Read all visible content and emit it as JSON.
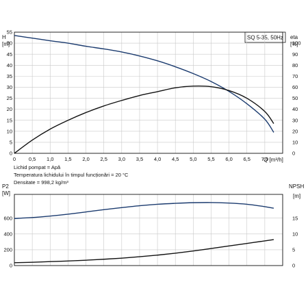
{
  "chart_data": [
    {
      "type": "line",
      "title": "",
      "badge": "SQ 5-35, 50Hz",
      "xlabel": "Q [m³/h]",
      "ylabel_left": "H",
      "ylabel_left_unit": "[m]",
      "ylabel_right": "eta",
      "ylabel_right_unit": "[%]",
      "xlim": [
        0,
        7.5
      ],
      "ylim_left": [
        0,
        55
      ],
      "ylim_right": [
        0,
        110
      ],
      "x_ticks": [
        "0",
        "0,5",
        "1,0",
        "1,5",
        "2,0",
        "2,5",
        "3,0",
        "3,5",
        "4,0",
        "4,5",
        "5,0",
        "5,5",
        "6,0",
        "6,5",
        "7,0"
      ],
      "y_left_ticks": [
        "0",
        "5",
        "10",
        "15",
        "20",
        "25",
        "30",
        "35",
        "40",
        "45",
        "50",
        "55"
      ],
      "y_right_ticks": [
        "0",
        "10",
        "20",
        "30",
        "40",
        "50",
        "60",
        "70",
        "80",
        "90",
        "100"
      ],
      "grid": true,
      "series": [
        {
          "axis": "left",
          "color": "#1a3a6e",
          "points": [
            [
              0,
              53.5
            ],
            [
              0.5,
              52.3
            ],
            [
              1.0,
              51.1
            ],
            [
              1.5,
              50
            ],
            [
              2.0,
              48.6
            ],
            [
              2.5,
              47.4
            ],
            [
              3.0,
              46
            ],
            [
              3.5,
              44.2
            ],
            [
              4.0,
              42
            ],
            [
              4.5,
              39.3
            ],
            [
              5.0,
              36.2
            ],
            [
              5.5,
              32.6
            ],
            [
              6.0,
              28.1
            ],
            [
              6.5,
              22.5
            ],
            [
              7.0,
              15.5
            ],
            [
              7.25,
              9.5
            ]
          ]
        },
        {
          "axis": "right",
          "color": "#111111",
          "points": [
            [
              0,
              0
            ],
            [
              0.5,
              12
            ],
            [
              1.0,
              22
            ],
            [
              1.5,
              30
            ],
            [
              2.0,
              37
            ],
            [
              2.5,
              43
            ],
            [
              3.0,
              48
            ],
            [
              3.5,
              52.5
            ],
            [
              4.0,
              56
            ],
            [
              4.5,
              59.5
            ],
            [
              5.0,
              61
            ],
            [
              5.5,
              60.5
            ],
            [
              6.0,
              57
            ],
            [
              6.5,
              50
            ],
            [
              7.0,
              38
            ],
            [
              7.25,
              27
            ]
          ]
        }
      ],
      "notes": [
        "Lichid pompat = Apă",
        "Temperatura lichidului în timpul funcționări = 20 °C",
        "Densitate = 998,2 kg/m³"
      ]
    },
    {
      "type": "line",
      "title": "",
      "xlabel": "",
      "ylabel_left": "P2",
      "ylabel_left_unit": "[W]",
      "ylabel_right": "NPSH",
      "ylabel_right_unit": "[m]",
      "xlim": [
        0,
        7.5
      ],
      "ylim_left": [
        0,
        900
      ],
      "ylim_right": [
        0,
        22.5
      ],
      "y_left_ticks": [
        "0",
        "200",
        "400",
        "600"
      ],
      "y_right_ticks": [
        "0",
        "5",
        "10",
        "15"
      ],
      "grid": true,
      "series": [
        {
          "axis": "left",
          "color": "#1a3a6e",
          "points": [
            [
              0,
              595
            ],
            [
              0.5,
              607
            ],
            [
              1.0,
              626
            ],
            [
              1.5,
              650
            ],
            [
              2.0,
              678
            ],
            [
              2.5,
              707
            ],
            [
              3.0,
              733
            ],
            [
              3.5,
              757
            ],
            [
              4.0,
              775
            ],
            [
              4.5,
              787
            ],
            [
              5.0,
              795
            ],
            [
              5.5,
              797
            ],
            [
              6.0,
              790
            ],
            [
              6.5,
              775
            ],
            [
              7.0,
              745
            ],
            [
              7.25,
              725
            ]
          ]
        },
        {
          "axis": "right",
          "color": "#111111",
          "points": [
            [
              0,
              0.9
            ],
            [
              0.5,
              1.05
            ],
            [
              1.0,
              1.25
            ],
            [
              1.5,
              1.45
            ],
            [
              2.0,
              1.7
            ],
            [
              2.5,
              2.0
            ],
            [
              3.0,
              2.35
            ],
            [
              3.5,
              2.8
            ],
            [
              4.0,
              3.3
            ],
            [
              4.5,
              3.9
            ],
            [
              5.0,
              4.6
            ],
            [
              5.5,
              5.4
            ],
            [
              6.0,
              6.2
            ],
            [
              6.5,
              7.0
            ],
            [
              7.0,
              7.8
            ],
            [
              7.25,
              8.2
            ]
          ]
        }
      ]
    }
  ]
}
